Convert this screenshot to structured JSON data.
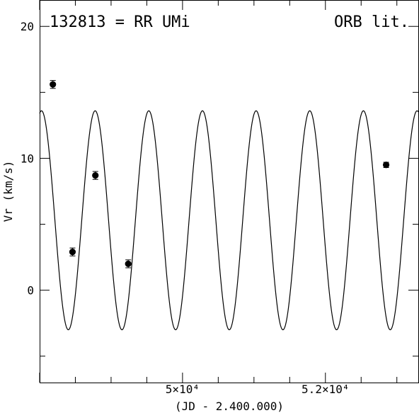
{
  "chart_data": {
    "type": "scatter",
    "title": "132813 = RR UMi",
    "annotation": "ORB lit.",
    "xlabel": "(JD - 2.400.000)",
    "ylabel": "Vr (km/s)",
    "xlim": [
      48000,
      53300
    ],
    "ylim": [
      -7,
      22
    ],
    "x_ticks": [
      {
        "value": 50000,
        "label": "5×10⁴"
      },
      {
        "value": 52000,
        "label": "5.2×10⁴"
      }
    ],
    "y_ticks": [
      {
        "value": 0,
        "label": "0"
      },
      {
        "value": 10,
        "label": "10"
      },
      {
        "value": 20,
        "label": "20"
      }
    ],
    "series": [
      {
        "points": [
          {
            "x": 48185,
            "y": 15.6,
            "err": 0.3
          },
          {
            "x": 48460,
            "y": 2.9,
            "err": 0.3
          },
          {
            "x": 48780,
            "y": 8.7,
            "err": 0.3
          },
          {
            "x": 49240,
            "y": 2.0,
            "err": 0.3
          },
          {
            "x": 52850,
            "y": 9.5,
            "err": 0.2
          }
        ]
      }
    ],
    "orbit_curve": {
      "gamma": 5.3,
      "amplitude": 8.3,
      "period_days": 751,
      "phase_zero_jd": 48026
    },
    "colors": {
      "ink": "#000000",
      "background": "#ffffff"
    }
  }
}
